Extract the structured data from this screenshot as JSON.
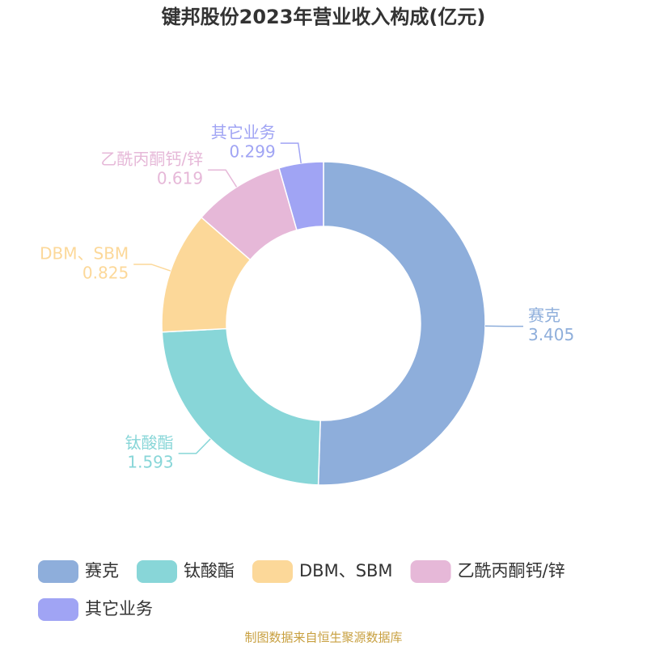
{
  "chart_data": {
    "type": "donut",
    "title": "键邦股份2023年营业收入构成(亿元)",
    "categories": [
      "赛克",
      "钛酸酯",
      "DBM、SBM",
      "乙酰丙酮钙/锌",
      "其它业务"
    ],
    "values": [
      3.405,
      1.593,
      0.825,
      0.619,
      0.299
    ],
    "colors": [
      "#8eaedb",
      "#88d6d8",
      "#fcd899",
      "#e6b8d8",
      "#a0a4f4"
    ],
    "source": "制图数据来自恒生聚源数据库"
  }
}
